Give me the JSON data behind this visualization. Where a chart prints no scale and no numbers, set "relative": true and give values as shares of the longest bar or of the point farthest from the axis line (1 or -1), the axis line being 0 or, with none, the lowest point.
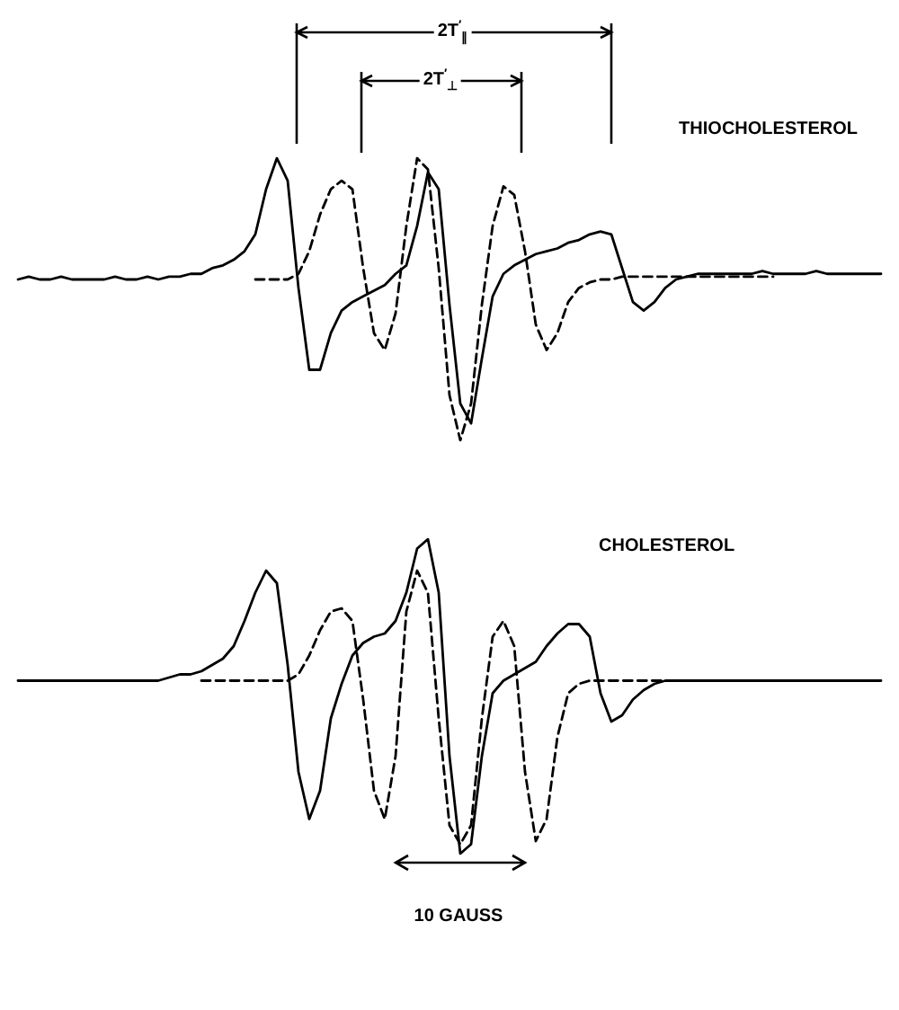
{
  "chart_data": [
    {
      "type": "line",
      "title": "THIOCHOLESTEROL",
      "relative": true,
      "tick_labels": false,
      "categories": [
        null,
        null,
        null,
        null,
        null,
        null,
        null,
        null,
        null,
        null,
        null,
        null,
        null,
        null,
        null,
        null,
        null,
        null,
        null,
        null,
        null,
        null,
        null,
        null,
        null,
        null,
        null,
        null,
        null,
        null,
        null,
        null,
        null,
        null,
        null,
        null,
        null,
        null,
        null,
        null,
        null,
        null,
        null,
        null,
        null,
        null,
        null,
        null,
        null,
        null,
        null,
        null,
        null,
        null,
        null,
        null,
        null,
        null,
        null,
        null,
        null,
        null,
        null,
        null,
        null,
        null,
        null,
        null,
        null,
        null,
        null,
        null,
        null,
        null,
        null,
        null,
        null,
        null,
        null,
        null,
        null
      ],
      "series": [
        {
          "color": "#000000",
          "line_style": "solid",
          "values": [
            0.57,
            0.58,
            0.57,
            0.57,
            0.58,
            0.57,
            0.57,
            0.57,
            0.57,
            0.58,
            0.57,
            0.57,
            0.58,
            0.57,
            0.58,
            0.58,
            0.59,
            0.59,
            0.61,
            0.62,
            0.64,
            0.67,
            0.73,
            0.89,
            1.0,
            0.92,
            0.54,
            0.25,
            0.25,
            0.38,
            0.46,
            0.49,
            0.51,
            0.53,
            0.55,
            0.59,
            0.62,
            0.76,
            0.95,
            0.89,
            0.48,
            0.13,
            0.06,
            0.29,
            0.51,
            0.59,
            0.62,
            0.64,
            0.66,
            0.67,
            0.68,
            0.7,
            0.71,
            0.73,
            0.74,
            0.73,
            0.61,
            0.49,
            0.46,
            0.49,
            0.54,
            0.57,
            0.58,
            0.59,
            0.59,
            0.59,
            0.59,
            0.59,
            0.59,
            0.6,
            0.59,
            0.59,
            0.59,
            0.59,
            0.6,
            0.59,
            0.59,
            0.59,
            0.59,
            0.59,
            0.59
          ]
        },
        {
          "color": "#000000",
          "line_style": "dashed",
          "values": [
            null,
            null,
            null,
            null,
            null,
            null,
            null,
            null,
            null,
            null,
            null,
            null,
            null,
            null,
            null,
            null,
            null,
            null,
            null,
            null,
            null,
            null,
            0.57,
            0.57,
            0.57,
            0.57,
            0.59,
            0.67,
            0.8,
            0.89,
            0.92,
            0.89,
            0.61,
            0.38,
            0.32,
            0.45,
            0.76,
            1.0,
            0.96,
            0.61,
            0.16,
            0.0,
            0.13,
            0.48,
            0.76,
            0.9,
            0.87,
            0.67,
            0.41,
            0.32,
            0.38,
            0.49,
            0.54,
            0.56,
            0.57,
            0.57,
            0.58,
            0.58,
            0.58,
            0.58,
            0.58,
            0.58,
            0.58,
            0.58,
            0.58,
            0.58,
            0.58,
            0.58,
            0.58,
            0.58,
            0.58,
            null,
            null,
            null,
            null,
            null,
            null,
            null,
            null,
            null,
            null
          ]
        }
      ],
      "annotations": [
        "2T$^{′}$$_{∥}$",
        "2T$^{′}$$_{⊥}$"
      ]
    },
    {
      "type": "line",
      "title": "CHOLESTEROL",
      "relative": true,
      "tick_labels": false,
      "categories": [
        null,
        null,
        null,
        null,
        null,
        null,
        null,
        null,
        null,
        null,
        null,
        null,
        null,
        null,
        null,
        null,
        null,
        null,
        null,
        null,
        null,
        null,
        null,
        null,
        null,
        null,
        null,
        null,
        null,
        null,
        null,
        null,
        null,
        null,
        null,
        null,
        null,
        null,
        null,
        null,
        null,
        null,
        null,
        null,
        null,
        null,
        null,
        null,
        null,
        null,
        null,
        null,
        null,
        null,
        null,
        null,
        null,
        null,
        null,
        null,
        null,
        null,
        null,
        null,
        null,
        null,
        null,
        null,
        null,
        null,
        null,
        null,
        null,
        null,
        null,
        null,
        null,
        null,
        null,
        null,
        null
      ],
      "series": [
        {
          "color": "#000000",
          "line_style": "solid",
          "values": [
            0.55,
            0.55,
            0.55,
            0.55,
            0.55,
            0.55,
            0.55,
            0.55,
            0.55,
            0.55,
            0.55,
            0.55,
            0.55,
            0.55,
            0.56,
            0.57,
            0.57,
            0.58,
            0.6,
            0.62,
            0.66,
            0.74,
            0.83,
            0.9,
            0.86,
            0.6,
            0.26,
            0.11,
            0.2,
            0.43,
            0.54,
            0.63,
            0.67,
            0.69,
            0.7,
            0.74,
            0.83,
            0.97,
            1.0,
            0.83,
            0.31,
            0.0,
            0.03,
            0.31,
            0.51,
            0.55,
            0.57,
            0.59,
            0.61,
            0.66,
            0.7,
            0.73,
            0.73,
            0.69,
            0.51,
            0.42,
            0.44,
            0.49,
            0.52,
            0.54,
            0.55,
            0.55,
            0.55,
            0.55,
            0.55,
            0.55,
            0.55,
            0.55,
            0.55,
            0.55,
            0.55,
            0.55,
            0.55,
            0.55,
            0.55,
            0.55,
            0.55,
            0.55,
            0.55,
            0.55,
            0.55
          ]
        },
        {
          "color": "#000000",
          "line_style": "dashed",
          "values": [
            null,
            null,
            null,
            null,
            null,
            null,
            null,
            null,
            null,
            null,
            null,
            null,
            null,
            null,
            null,
            null,
            null,
            0.55,
            0.55,
            0.55,
            0.55,
            0.55,
            0.55,
            0.55,
            0.55,
            0.55,
            0.57,
            0.63,
            0.71,
            0.77,
            0.78,
            0.74,
            0.49,
            0.2,
            0.11,
            0.31,
            0.77,
            0.9,
            0.83,
            0.43,
            0.09,
            0.03,
            0.09,
            0.43,
            0.69,
            0.74,
            0.66,
            0.26,
            0.04,
            0.11,
            0.37,
            0.51,
            0.54,
            0.55,
            0.55,
            0.55,
            0.55,
            0.55,
            0.55,
            0.55,
            0.55,
            0.55,
            0.55,
            0.55,
            0.55,
            0.55,
            0.55,
            0.55,
            0.55,
            0.55,
            0.55,
            null,
            null,
            null,
            null,
            null,
            null,
            null,
            null,
            null,
            null
          ]
        }
      ],
      "annotations": [
        "10 GAUSS"
      ]
    }
  ]
}
